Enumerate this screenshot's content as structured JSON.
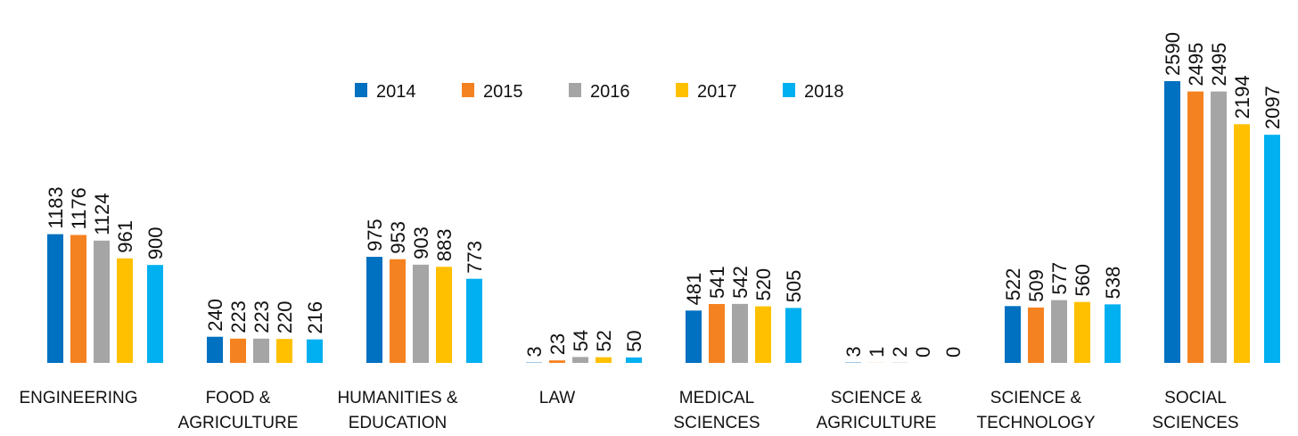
{
  "chart_data": {
    "type": "bar",
    "categories": [
      "ENGINEERING",
      "FOOD & AGRICULTURE",
      "HUMANITIES & EDUCATION",
      "LAW",
      "MEDICAL SCIENCES",
      "SCIENCE & AGRICULTURE",
      "SCIENCE & TECHNOLOGY",
      "SOCIAL SCIENCES"
    ],
    "series": [
      {
        "name": "2014",
        "color": "#0070c0",
        "values": [
          1183,
          240,
          975,
          3,
          481,
          3,
          522,
          2590
        ]
      },
      {
        "name": "2015",
        "color": "#f58220",
        "values": [
          1176,
          223,
          953,
          23,
          541,
          1,
          509,
          2495
        ]
      },
      {
        "name": "2016",
        "color": "#a5a5a5",
        "values": [
          1124,
          223,
          903,
          54,
          542,
          2,
          577,
          2495
        ]
      },
      {
        "name": "2017",
        "color": "#ffc000",
        "values": [
          961,
          220,
          883,
          52,
          520,
          0,
          560,
          2194
        ]
      },
      {
        "name": "2018",
        "color": "#00b0f0",
        "values": [
          900,
          216,
          773,
          50,
          505,
          0,
          538,
          2097
        ]
      }
    ],
    "legend": "top"
  }
}
